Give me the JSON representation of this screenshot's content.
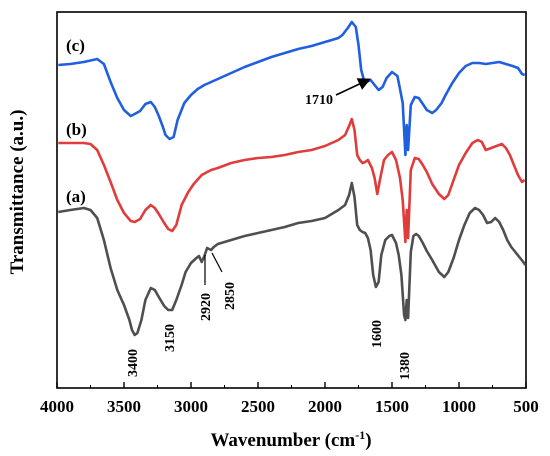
{
  "chart_data": {
    "type": "line",
    "title": "",
    "xlabel": "Wavenumber (cm",
    "xlabel_sup": "-1",
    "xlabel_close": ")",
    "ylabel": "Transmittance (a.u.)",
    "xlim": [
      4000,
      500
    ],
    "x_reversed": true,
    "x_ticks": [
      4000,
      3500,
      3000,
      2500,
      2000,
      1500,
      1000,
      500
    ],
    "y_ticks_shown": false,
    "grid": false,
    "series": [
      {
        "name": "(c)",
        "color": "#1f5fe0",
        "points": [
          [
            3990,
            65
          ],
          [
            3900,
            64
          ],
          [
            3800,
            62
          ],
          [
            3700,
            59
          ],
          [
            3650,
            64
          ],
          [
            3600,
            82
          ],
          [
            3550,
            98
          ],
          [
            3500,
            110
          ],
          [
            3450,
            116
          ],
          [
            3420,
            114
          ],
          [
            3380,
            111
          ],
          [
            3340,
            104
          ],
          [
            3300,
            102
          ],
          [
            3270,
            107
          ],
          [
            3240,
            116
          ],
          [
            3210,
            127
          ],
          [
            3190,
            135
          ],
          [
            3160,
            139
          ],
          [
            3130,
            137
          ],
          [
            3100,
            120
          ],
          [
            3050,
            103
          ],
          [
            3000,
            95
          ],
          [
            2950,
            89
          ],
          [
            2900,
            85
          ],
          [
            2800,
            79
          ],
          [
            2700,
            73
          ],
          [
            2600,
            67
          ],
          [
            2500,
            62
          ],
          [
            2400,
            57
          ],
          [
            2300,
            53
          ],
          [
            2200,
            49
          ],
          [
            2100,
            46
          ],
          [
            2000,
            42
          ],
          [
            1950,
            40
          ],
          [
            1900,
            38
          ],
          [
            1870,
            35
          ],
          [
            1830,
            28
          ],
          [
            1800,
            22
          ],
          [
            1770,
            27
          ],
          [
            1750,
            45
          ],
          [
            1730,
            70
          ],
          [
            1710,
            80
          ],
          [
            1690,
            82
          ],
          [
            1660,
            80
          ],
          [
            1630,
            85
          ],
          [
            1600,
            90
          ],
          [
            1570,
            87
          ],
          [
            1540,
            78
          ],
          [
            1500,
            72
          ],
          [
            1460,
            76
          ],
          [
            1440,
            89
          ],
          [
            1420,
            103
          ],
          [
            1400,
            155
          ],
          [
            1390,
            125
          ],
          [
            1380,
            150
          ],
          [
            1360,
            105
          ],
          [
            1330,
            97
          ],
          [
            1300,
            98
          ],
          [
            1270,
            104
          ],
          [
            1240,
            110
          ],
          [
            1200,
            113
          ],
          [
            1170,
            110
          ],
          [
            1130,
            103
          ],
          [
            1100,
            95
          ],
          [
            1050,
            83
          ],
          [
            1000,
            73
          ],
          [
            950,
            66
          ],
          [
            900,
            63
          ],
          [
            850,
            63
          ],
          [
            800,
            64
          ],
          [
            750,
            63
          ],
          [
            700,
            62
          ],
          [
            650,
            64
          ],
          [
            600,
            66
          ],
          [
            560,
            68
          ],
          [
            530,
            74
          ],
          [
            510,
            75
          ]
        ]
      },
      {
        "name": "(b)",
        "color": "#e03c3c",
        "points": [
          [
            3990,
            143
          ],
          [
            3900,
            143
          ],
          [
            3800,
            143
          ],
          [
            3750,
            144
          ],
          [
            3700,
            150
          ],
          [
            3650,
            165
          ],
          [
            3600,
            182
          ],
          [
            3550,
            200
          ],
          [
            3500,
            213
          ],
          [
            3450,
            221
          ],
          [
            3420,
            222
          ],
          [
            3380,
            219
          ],
          [
            3340,
            210
          ],
          [
            3300,
            205
          ],
          [
            3270,
            208
          ],
          [
            3240,
            214
          ],
          [
            3200,
            223
          ],
          [
            3170,
            229
          ],
          [
            3140,
            231
          ],
          [
            3110,
            225
          ],
          [
            3070,
            205
          ],
          [
            3020,
            192
          ],
          [
            2980,
            184
          ],
          [
            2920,
            175
          ],
          [
            2850,
            170
          ],
          [
            2800,
            168
          ],
          [
            2700,
            163
          ],
          [
            2600,
            160
          ],
          [
            2500,
            158
          ],
          [
            2400,
            157
          ],
          [
            2300,
            155
          ],
          [
            2200,
            152
          ],
          [
            2100,
            150
          ],
          [
            2000,
            146
          ],
          [
            1950,
            143
          ],
          [
            1900,
            140
          ],
          [
            1850,
            135
          ],
          [
            1820,
            126
          ],
          [
            1800,
            119
          ],
          [
            1780,
            130
          ],
          [
            1760,
            155
          ],
          [
            1740,
            160
          ],
          [
            1720,
            163
          ],
          [
            1700,
            162
          ],
          [
            1680,
            160
          ],
          [
            1650,
            168
          ],
          [
            1630,
            178
          ],
          [
            1610,
            194
          ],
          [
            1590,
            180
          ],
          [
            1560,
            160
          ],
          [
            1530,
            155
          ],
          [
            1500,
            152
          ],
          [
            1470,
            160
          ],
          [
            1440,
            178
          ],
          [
            1420,
            200
          ],
          [
            1400,
            242
          ],
          [
            1390,
            210
          ],
          [
            1380,
            238
          ],
          [
            1360,
            170
          ],
          [
            1330,
            158
          ],
          [
            1300,
            159
          ],
          [
            1270,
            165
          ],
          [
            1240,
            172
          ],
          [
            1200,
            184
          ],
          [
            1150,
            194
          ],
          [
            1110,
            199
          ],
          [
            1080,
            195
          ],
          [
            1040,
            180
          ],
          [
            1000,
            165
          ],
          [
            950,
            153
          ],
          [
            900,
            143
          ],
          [
            860,
            140
          ],
          [
            830,
            142
          ],
          [
            800,
            150
          ],
          [
            760,
            148
          ],
          [
            720,
            146
          ],
          [
            680,
            144
          ],
          [
            650,
            148
          ],
          [
            620,
            155
          ],
          [
            590,
            165
          ],
          [
            560,
            175
          ],
          [
            530,
            182
          ],
          [
            510,
            180
          ]
        ]
      },
      {
        "name": "(a)",
        "color": "#4f4f4f",
        "points": [
          [
            3990,
            212
          ],
          [
            3900,
            210
          ],
          [
            3800,
            208
          ],
          [
            3750,
            210
          ],
          [
            3700,
            218
          ],
          [
            3650,
            240
          ],
          [
            3600,
            268
          ],
          [
            3550,
            290
          ],
          [
            3500,
            305
          ],
          [
            3460,
            320
          ],
          [
            3440,
            330
          ],
          [
            3420,
            335
          ],
          [
            3400,
            333
          ],
          [
            3370,
            320
          ],
          [
            3340,
            300
          ],
          [
            3300,
            288
          ],
          [
            3270,
            290
          ],
          [
            3240,
            297
          ],
          [
            3200,
            306
          ],
          [
            3170,
            310
          ],
          [
            3140,
            310
          ],
          [
            3110,
            300
          ],
          [
            3070,
            285
          ],
          [
            3040,
            272
          ],
          [
            3000,
            263
          ],
          [
            2960,
            258
          ],
          [
            2940,
            256
          ],
          [
            2920,
            262
          ],
          [
            2900,
            256
          ],
          [
            2880,
            248
          ],
          [
            2850,
            250
          ],
          [
            2830,
            247
          ],
          [
            2800,
            244
          ],
          [
            2700,
            240
          ],
          [
            2600,
            236
          ],
          [
            2500,
            233
          ],
          [
            2400,
            230
          ],
          [
            2300,
            227
          ],
          [
            2200,
            223
          ],
          [
            2100,
            221
          ],
          [
            2000,
            218
          ],
          [
            1950,
            214
          ],
          [
            1900,
            210
          ],
          [
            1850,
            205
          ],
          [
            1820,
            195
          ],
          [
            1800,
            183
          ],
          [
            1780,
            197
          ],
          [
            1760,
            225
          ],
          [
            1740,
            230
          ],
          [
            1720,
            232
          ],
          [
            1700,
            233
          ],
          [
            1680,
            238
          ],
          [
            1660,
            250
          ],
          [
            1640,
            275
          ],
          [
            1620,
            287
          ],
          [
            1600,
            282
          ],
          [
            1580,
            255
          ],
          [
            1550,
            240
          ],
          [
            1520,
            236
          ],
          [
            1500,
            235
          ],
          [
            1470,
            243
          ],
          [
            1450,
            255
          ],
          [
            1430,
            275
          ],
          [
            1410,
            315
          ],
          [
            1400,
            320
          ],
          [
            1390,
            300
          ],
          [
            1380,
            318
          ],
          [
            1360,
            252
          ],
          [
            1340,
            236
          ],
          [
            1320,
            234
          ],
          [
            1300,
            236
          ],
          [
            1270,
            243
          ],
          [
            1240,
            251
          ],
          [
            1200,
            260
          ],
          [
            1150,
            272
          ],
          [
            1110,
            277
          ],
          [
            1080,
            272
          ],
          [
            1040,
            258
          ],
          [
            1000,
            240
          ],
          [
            960,
            225
          ],
          [
            920,
            213
          ],
          [
            880,
            208
          ],
          [
            850,
            210
          ],
          [
            820,
            215
          ],
          [
            790,
            223
          ],
          [
            760,
            222
          ],
          [
            730,
            218
          ],
          [
            700,
            222
          ],
          [
            670,
            230
          ],
          [
            640,
            240
          ],
          [
            610,
            247
          ],
          [
            580,
            252
          ],
          [
            550,
            257
          ],
          [
            520,
            262
          ],
          [
            505,
            265
          ]
        ]
      }
    ],
    "annotations": {
      "curve_labels": [
        "(c)",
        "(b)",
        "(a)"
      ],
      "peak_labels": [
        "1710",
        "3400",
        "3150",
        "2920",
        "2850",
        "1600",
        "1380"
      ]
    }
  }
}
